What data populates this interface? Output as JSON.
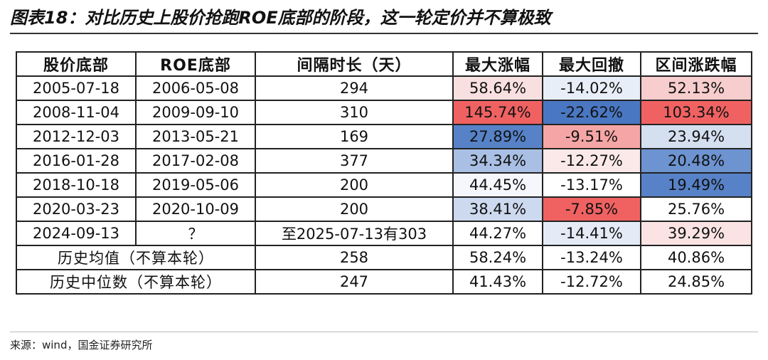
{
  "title": "图表18：对比历史上股价抢跑ROE底部的阶段，这一轮定价并不算极致",
  "source": "来源：wind，国金证券研究所",
  "chart_data": {
    "type": "table",
    "headers": [
      "股价底部",
      "ROE底部",
      "间隔时长（天）",
      "最大涨幅",
      "最大回撤",
      "区间涨跌幅"
    ],
    "rows": [
      {
        "price_bottom": "2005-07-18",
        "roe_bottom": "2006-05-08",
        "interval": "294",
        "max_gain": "58.64%",
        "max_drawdown": "-14.02%",
        "range_change": "52.13%",
        "colors": [
          "#f9e0e0",
          "#e8eef8",
          "#f8cdcd"
        ]
      },
      {
        "price_bottom": "2008-11-04",
        "roe_bottom": "2009-09-10",
        "interval": "310",
        "max_gain": "145.74%",
        "max_drawdown": "-22.62%",
        "range_change": "103.34%",
        "colors": [
          "#f06262",
          "#4a77c2",
          "#f06262"
        ]
      },
      {
        "price_bottom": "2012-12-03",
        "roe_bottom": "2013-05-21",
        "interval": "169",
        "max_gain": "27.89%",
        "max_drawdown": "-9.51%",
        "range_change": "23.94%",
        "colors": [
          "#5782c8",
          "#f5a5a5",
          "#d4dff0"
        ]
      },
      {
        "price_bottom": "2016-01-28",
        "roe_bottom": "2017-02-08",
        "interval": "377",
        "max_gain": "34.34%",
        "max_drawdown": "-12.27%",
        "range_change": "20.48%",
        "colors": [
          "#a9c0e4",
          "#fbe9e9",
          "#6d93d0"
        ]
      },
      {
        "price_bottom": "2018-10-18",
        "roe_bottom": "2019-05-06",
        "interval": "200",
        "max_gain": "44.45%",
        "max_drawdown": "-13.17%",
        "range_change": "19.49%",
        "colors": [
          "#f5f7fc",
          "#ffffff",
          "#5782c8"
        ]
      },
      {
        "price_bottom": "2020-03-23",
        "roe_bottom": "2020-10-09",
        "interval": "200",
        "max_gain": "38.41%",
        "max_drawdown": "-7.85%",
        "range_change": "25.76%",
        "colors": [
          "#ccd9ef",
          "#f06262",
          "#ffffff"
        ]
      },
      {
        "price_bottom": "2024-09-13",
        "roe_bottom": "？",
        "interval": "至2025-07-13有303",
        "max_gain": "44.27%",
        "max_drawdown": "-14.41%",
        "range_change": "39.29%",
        "colors": [
          "#ffffff",
          "#e4ebf7",
          "#fbe3e3"
        ]
      }
    ],
    "summary_rows": [
      {
        "label": "历史均值（不算本轮）",
        "interval": "258",
        "max_gain": "58.24%",
        "max_drawdown": "-13.24%",
        "range_change": "40.86%"
      },
      {
        "label": "历史中位数（不算本轮）",
        "interval": "247",
        "max_gain": "41.43%",
        "max_drawdown": "-12.72%",
        "range_change": "24.85%"
      }
    ]
  }
}
